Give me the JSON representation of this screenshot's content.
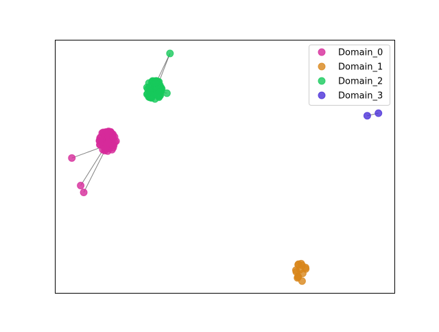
{
  "chart_data": {
    "type": "scatter",
    "title": "",
    "xlabel": "",
    "ylabel": "",
    "xlim": [
      0,
      100
    ],
    "ylim": [
      0,
      100
    ],
    "ticks": false,
    "grid": false,
    "legend": {
      "position": "top-right"
    },
    "edge_color": "#555555",
    "series": [
      {
        "name": "Domain_0",
        "color": "#d62a9a",
        "cluster": {
          "cx": 15.5,
          "cy": 60.0,
          "rx": 2.6,
          "ry": 4.2,
          "count": 70
        },
        "outliers": [
          [
            5.0,
            53.3
          ],
          [
            7.6,
            42.4
          ],
          [
            8.5,
            39.7
          ]
        ],
        "edges": [
          [
            [
              5.0,
              53.3
            ],
            [
              14.0,
              57.7
            ]
          ],
          [
            [
              7.6,
              42.4
            ],
            [
              14.2,
              56.5
            ]
          ],
          [
            [
              8.5,
              39.7
            ],
            [
              15.0,
              57.0
            ]
          ]
        ]
      },
      {
        "name": "Domain_1",
        "color": "#d8861a",
        "cluster": {
          "cx": 72.5,
          "cy": 8.2,
          "rx": 1.7,
          "ry": 3.6,
          "count": 14
        },
        "outliers": [],
        "edges": []
      },
      {
        "name": "Domain_2",
        "color": "#16c95b",
        "cluster": {
          "cx": 29.2,
          "cy": 80.3,
          "rx": 2.3,
          "ry": 4.0,
          "count": 70
        },
        "outliers": [
          [
            33.9,
            94.6
          ],
          [
            33.0,
            78.9
          ]
        ],
        "edges": [
          [
            [
              33.9,
              94.6
            ],
            [
              29.5,
              82.2
            ]
          ],
          [
            [
              33.9,
              94.6
            ],
            [
              30.2,
              81.8
            ]
          ],
          [
            [
              33.0,
              78.9
            ],
            [
              31.0,
              79.3
            ]
          ]
        ]
      },
      {
        "name": "Domain_3",
        "color": "#4a2fd8",
        "cluster": null,
        "outliers": [
          [
            92.0,
            70.0
          ],
          [
            95.3,
            71.0
          ]
        ],
        "edges": [
          [
            [
              92.0,
              70.0
            ],
            [
              95.3,
              71.0
            ]
          ]
        ]
      }
    ]
  }
}
